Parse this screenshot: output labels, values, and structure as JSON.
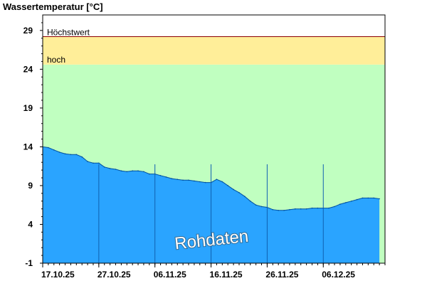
{
  "chart_data": {
    "type": "area",
    "title": "Wassertemperatur [°C]",
    "xlabel": "",
    "ylabel": "",
    "ylim": [
      -1,
      31
    ],
    "yticks": [
      -1,
      4,
      9,
      14,
      19,
      24,
      29
    ],
    "xlim": [
      "2025-10-17",
      "2025-12-17"
    ],
    "xtick_labels": [
      "17.10.25",
      "27.10.25",
      "06.11.25",
      "16.11.25",
      "26.11.25",
      "06.12.25"
    ],
    "xtick_dates": [
      "2025-10-17",
      "2025-10-27",
      "2025-11-06",
      "2025-11-16",
      "2025-11-26",
      "2025-12-06"
    ],
    "thresholds": [
      {
        "name": "hoch",
        "from": 24.6,
        "to": 28.2,
        "color": "#ffee99"
      },
      {
        "name": "Höchstwert",
        "value": 28.2,
        "color": "#8b0000"
      }
    ],
    "normal_band": {
      "from": -1,
      "to": 24.6,
      "color": "#c0ffc0"
    },
    "series": [
      {
        "color": "#2aa4ff",
        "x": [
          "2025-10-17",
          "2025-10-18",
          "2025-10-19",
          "2025-10-20",
          "2025-10-21",
          "2025-10-22",
          "2025-10-23",
          "2025-10-24",
          "2025-10-25",
          "2025-10-26",
          "2025-10-27",
          "2025-10-28",
          "2025-10-29",
          "2025-10-30",
          "2025-10-31",
          "2025-11-01",
          "2025-11-02",
          "2025-11-03",
          "2025-11-04",
          "2025-11-05",
          "2025-11-06",
          "2025-11-07",
          "2025-11-08",
          "2025-11-09",
          "2025-11-10",
          "2025-11-11",
          "2025-11-12",
          "2025-11-13",
          "2025-11-14",
          "2025-11-15",
          "2025-11-16",
          "2025-11-17",
          "2025-11-18",
          "2025-11-19",
          "2025-11-20",
          "2025-11-21",
          "2025-11-22",
          "2025-11-23",
          "2025-11-24",
          "2025-11-25",
          "2025-11-26",
          "2025-11-27",
          "2025-11-28",
          "2025-11-29",
          "2025-11-30",
          "2025-12-01",
          "2025-12-02",
          "2025-12-03",
          "2025-12-04",
          "2025-12-05",
          "2025-12-06",
          "2025-12-07",
          "2025-12-08",
          "2025-12-09",
          "2025-12-10",
          "2025-12-11",
          "2025-12-12",
          "2025-12-13",
          "2025-12-14",
          "2025-12-15",
          "2025-12-16"
        ],
        "y": [
          14.0,
          13.9,
          13.6,
          13.3,
          13.1,
          13.0,
          13.0,
          12.7,
          12.1,
          11.9,
          11.9,
          11.4,
          11.2,
          11.1,
          10.9,
          10.8,
          10.9,
          10.9,
          10.8,
          10.5,
          10.5,
          10.3,
          10.1,
          9.9,
          9.8,
          9.7,
          9.7,
          9.6,
          9.5,
          9.4,
          9.4,
          9.8,
          9.5,
          9.0,
          8.5,
          8.1,
          7.6,
          7.0,
          6.5,
          6.3,
          6.2,
          5.9,
          5.8,
          5.8,
          5.9,
          6.0,
          6.0,
          6.0,
          6.1,
          6.1,
          6.1,
          6.1,
          6.3,
          6.6,
          6.8,
          7.0,
          7.2,
          7.4,
          7.4,
          7.4,
          7.3
        ]
      }
    ],
    "grid": false,
    "legend": "none"
  },
  "watermark": "Rohdaten"
}
